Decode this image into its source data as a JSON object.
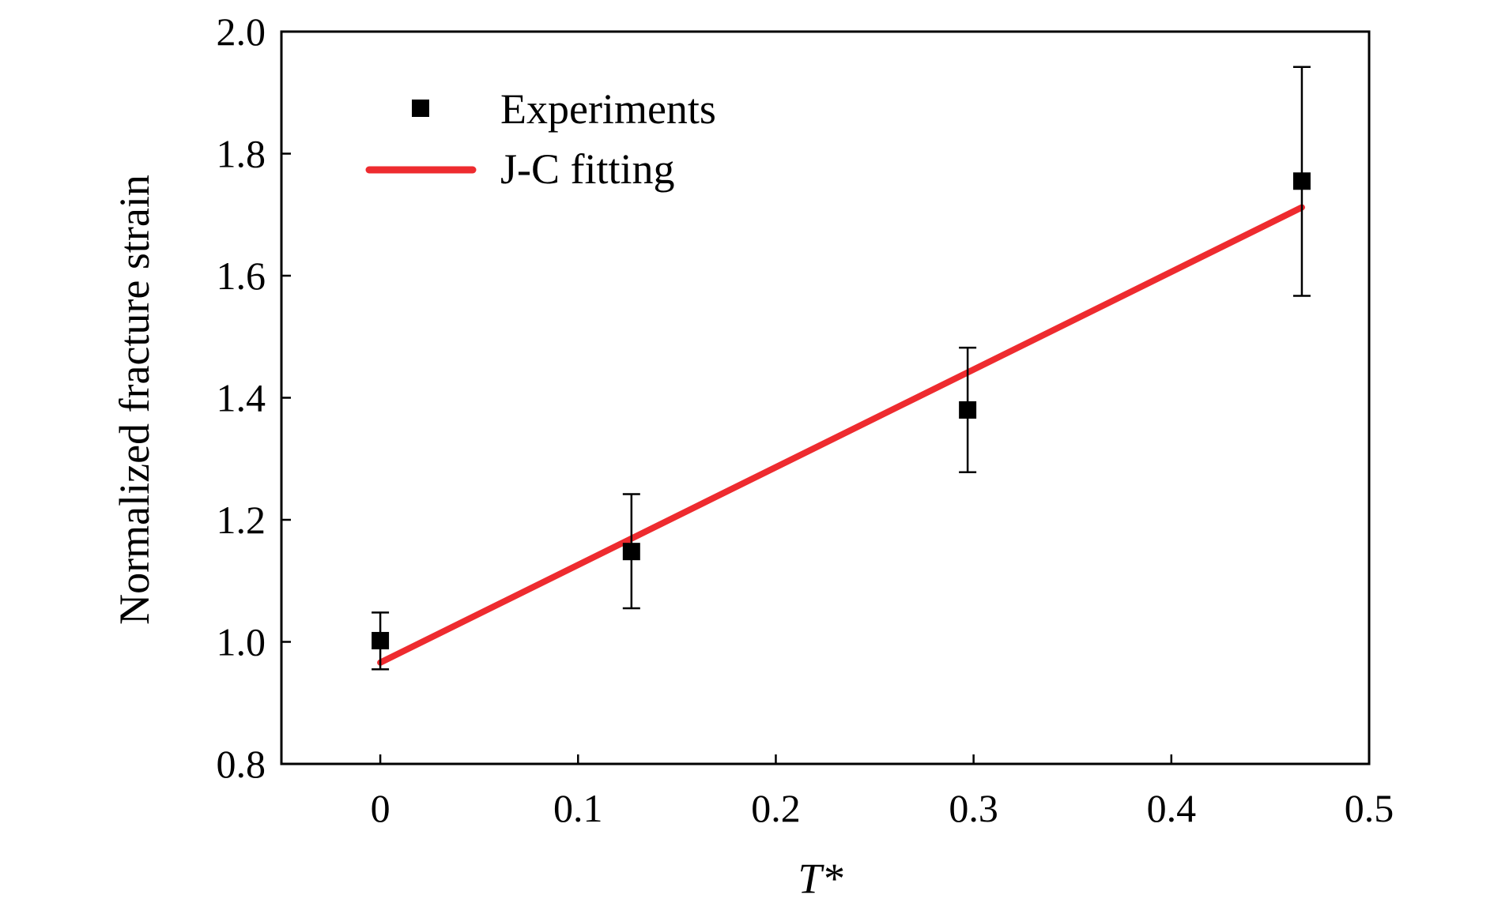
{
  "chart_data": {
    "type": "scatter",
    "xlabel": "T*",
    "ylabel": "Normalized fracture strain",
    "xlim": [
      -0.05,
      0.5
    ],
    "ylim": [
      0.8,
      2.0
    ],
    "xticks": [
      "0",
      "0.1",
      "0.2",
      "0.3",
      "0.4",
      "0.5"
    ],
    "xtick_values": [
      0,
      0.1,
      0.2,
      0.3,
      0.4,
      0.5
    ],
    "yticks": [
      "0.8",
      "1.0",
      "1.2",
      "1.4",
      "1.6",
      "1.8",
      "2.0"
    ],
    "ytick_values": [
      0.8,
      1.0,
      1.2,
      1.4,
      1.6,
      1.8,
      2.0
    ],
    "grid": false,
    "legend_position": "top-left",
    "series": [
      {
        "name": "Experiments",
        "kind": "points",
        "marker": "square",
        "color": "#000000",
        "x": [
          0,
          0.127,
          0.297,
          0.466
        ],
        "y": [
          1.002,
          1.148,
          1.38,
          1.755
        ],
        "err_low": [
          0.955,
          1.055,
          1.278,
          1.567
        ],
        "err_high": [
          1.048,
          1.242,
          1.482,
          1.942
        ]
      },
      {
        "name": "J-C fitting",
        "kind": "line",
        "color": "#ee2b2f",
        "x": [
          0,
          0.466
        ],
        "y": [
          0.966,
          1.712
        ]
      }
    ]
  }
}
